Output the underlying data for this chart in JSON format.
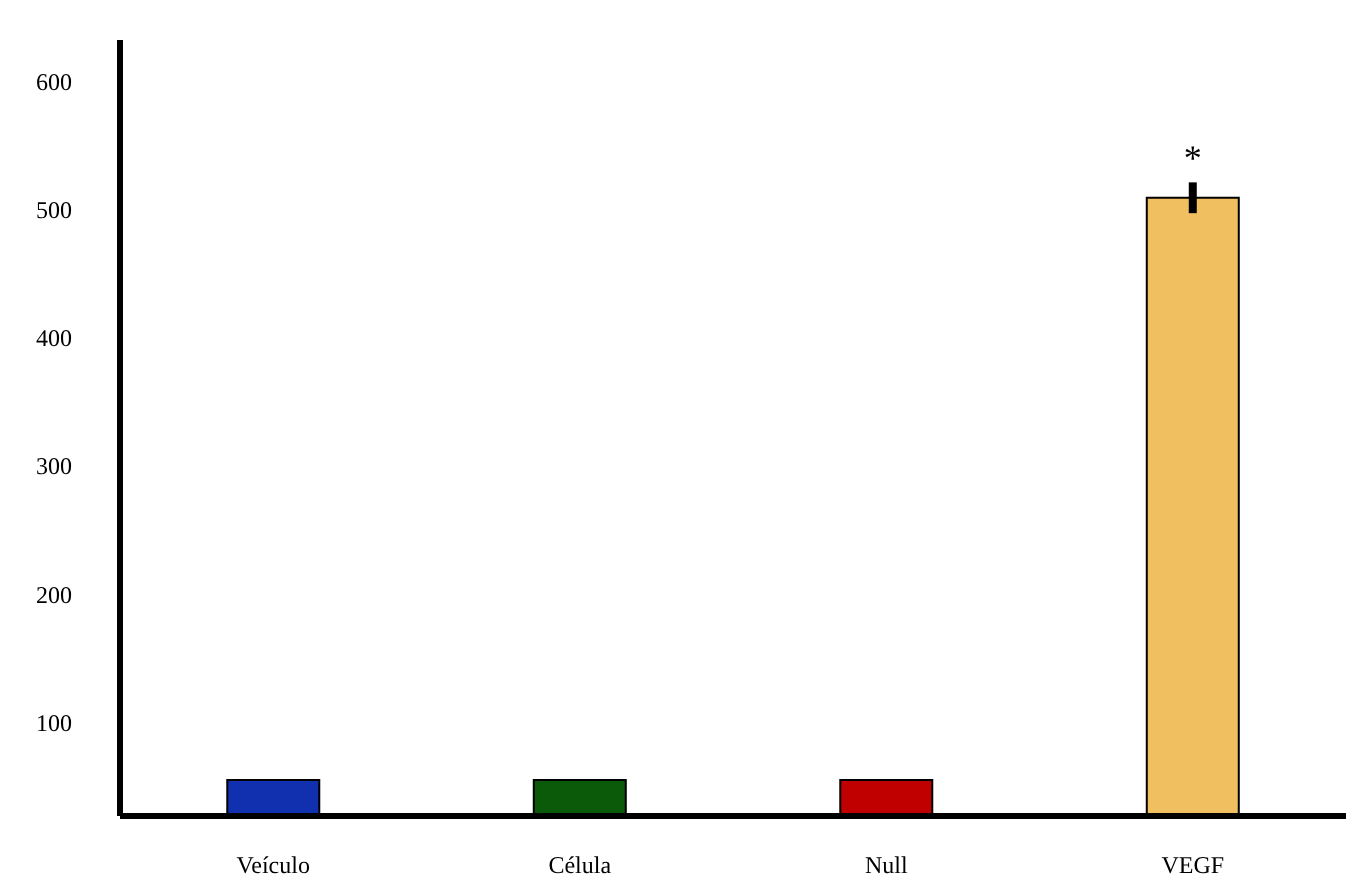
{
  "chart_data": {
    "type": "bar",
    "categories": [
      "Veículo",
      "Célula",
      "Null",
      "VEGF"
    ],
    "values": [
      55,
      55,
      55,
      509
    ],
    "colors": [
      "#1030b0",
      "#0a5a0a",
      "#c00000",
      "#f0c060"
    ],
    "errors": [
      null,
      null,
      null,
      12
    ],
    "ylim": [
      27,
      632
    ],
    "yticks": [
      100,
      200,
      300,
      400,
      500,
      600
    ],
    "annotations": [
      {
        "text": "*",
        "x": "VEGF",
        "y": 521
      }
    ],
    "grid": false,
    "legend": false
  }
}
